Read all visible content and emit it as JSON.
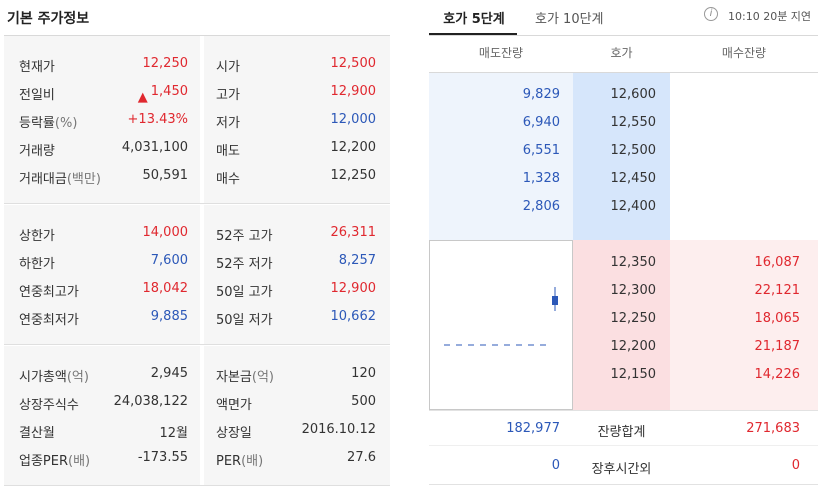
{
  "left": {
    "title": "기본 주가정보",
    "section1": [
      {
        "l1": "현재가",
        "u1": "",
        "v1": "12,250",
        "c1": "red",
        "l2": "시가",
        "u2": "",
        "v2": "12,500",
        "c2": "red"
      },
      {
        "l1": "전일비",
        "u1": "",
        "v1": "1,450",
        "c1": "red",
        "arrow": "▲",
        "l2": "고가",
        "u2": "",
        "v2": "12,900",
        "c2": "red"
      },
      {
        "l1": "등락률",
        "u1": "(%)",
        "v1": "+13.43%",
        "c1": "red",
        "l2": "저가",
        "u2": "",
        "v2": "12,000",
        "c2": "blue"
      },
      {
        "l1": "거래량",
        "u1": "",
        "v1": "4,031,100",
        "c1": "dark",
        "l2": "매도",
        "u2": "",
        "v2": "12,200",
        "c2": "dark"
      },
      {
        "l1": "거래대금",
        "u1": "(백만)",
        "v1": "50,591",
        "c1": "dark",
        "l2": "매수",
        "u2": "",
        "v2": "12,250",
        "c2": "dark"
      }
    ],
    "section2": [
      {
        "l1": "상한가",
        "u1": "",
        "v1": "14,000",
        "c1": "red",
        "l2": "52주 고가",
        "u2": "",
        "v2": "26,311",
        "c2": "red"
      },
      {
        "l1": "하한가",
        "u1": "",
        "v1": "7,600",
        "c1": "blue",
        "l2": "52주 저가",
        "u2": "",
        "v2": "8,257",
        "c2": "blue"
      },
      {
        "l1": "연중최고가",
        "u1": "",
        "v1": "18,042",
        "c1": "red",
        "l2": "50일 고가",
        "u2": "",
        "v2": "12,900",
        "c2": "red"
      },
      {
        "l1": "연중최저가",
        "u1": "",
        "v1": "9,885",
        "c1": "blue",
        "l2": "50일 저가",
        "u2": "",
        "v2": "10,662",
        "c2": "blue"
      }
    ],
    "section3": [
      {
        "l1": "시가총액",
        "u1": "(억)",
        "v1": "2,945",
        "c1": "dark",
        "l2": "자본금",
        "u2": "(억)",
        "v2": "120",
        "c2": "dark"
      },
      {
        "l1": "상장주식수",
        "u1": "",
        "v1": "24,038,122",
        "c1": "dark",
        "l2": "액면가",
        "u2": "",
        "v2": "500",
        "c2": "dark"
      },
      {
        "l1": "결산월",
        "u1": "",
        "v1": "12월",
        "c1": "dark",
        "l2": "상장일",
        "u2": "",
        "v2": "2016.10.12",
        "c2": "dark"
      },
      {
        "l1": "업종PER",
        "u1": "(배)",
        "v1": "-173.55",
        "c1": "dark",
        "l2": "PER",
        "u2": "(배)",
        "v2": "27.6",
        "c2": "dark"
      }
    ]
  },
  "right": {
    "tab_active": "호가 5단계",
    "tab_inactive": "호가 10단계",
    "info_icon": "i",
    "delay_text": "10:10 20분 지연",
    "headers": {
      "ask_volume": "매도잔량",
      "price": "호가",
      "bid_volume": "매수잔량"
    },
    "asks": [
      {
        "volume": "9,829",
        "price": "12,600"
      },
      {
        "volume": "6,940",
        "price": "12,550"
      },
      {
        "volume": "6,551",
        "price": "12,500"
      },
      {
        "volume": "1,328",
        "price": "12,450"
      },
      {
        "volume": "2,806",
        "price": "12,400"
      }
    ],
    "bids": [
      {
        "price": "12,350",
        "volume": "16,087"
      },
      {
        "price": "12,300",
        "volume": "22,121"
      },
      {
        "price": "12,250",
        "volume": "18,065"
      },
      {
        "price": "12,200",
        "volume": "21,187"
      },
      {
        "price": "12,150",
        "volume": "14,226"
      }
    ],
    "total": {
      "ask": "182,977",
      "label": "잔량합계",
      "bid": "271,683"
    },
    "after_hours": {
      "ask": "0",
      "label": "장후시간외",
      "bid": "0"
    },
    "colors": {
      "up": "#e0282f",
      "down": "#2c58b8",
      "ask_bg": "#eef4fc",
      "ask_price_bg": "#d6e6fb",
      "bid_bg": "#fdeeee",
      "bid_price_bg": "#fbdfe1"
    }
  }
}
